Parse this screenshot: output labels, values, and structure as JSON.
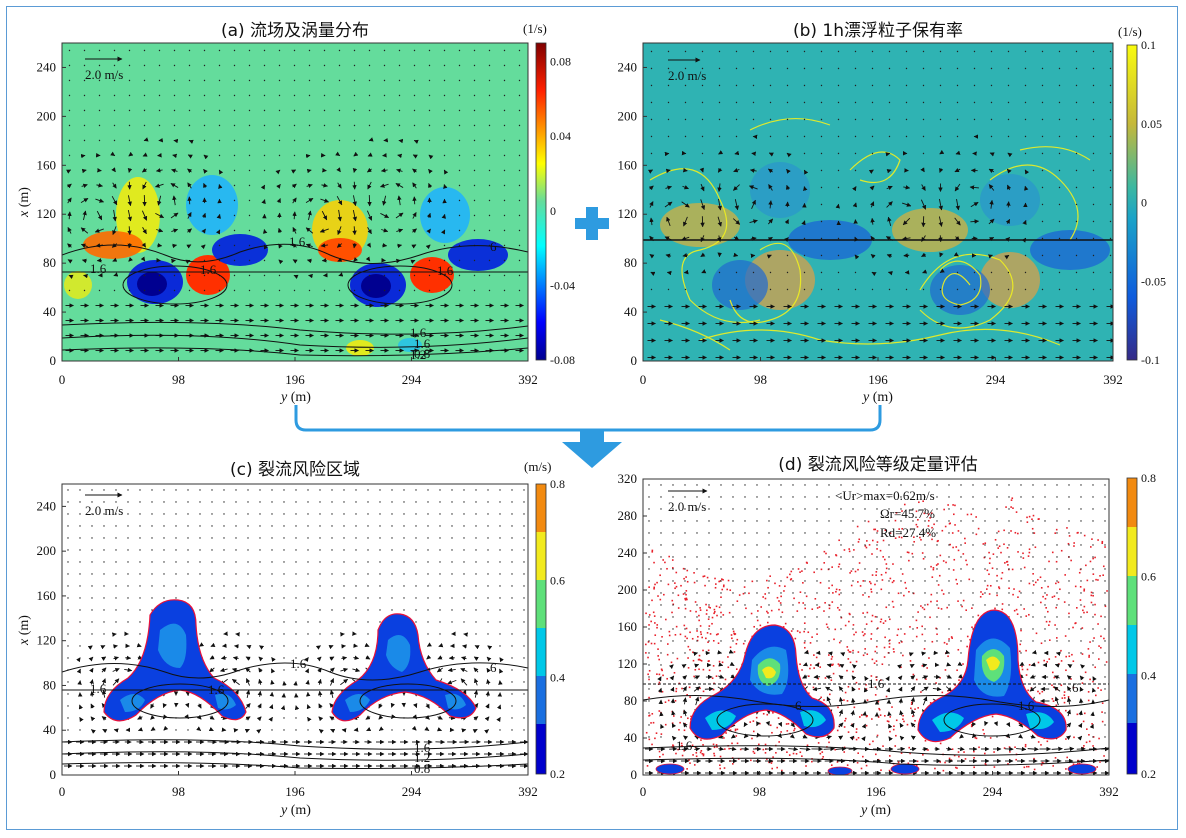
{
  "chart_data": [
    {
      "id": "a",
      "type": "heatmap",
      "title": "(a) 流场及涡量分布",
      "xlabel_italic": "y",
      "xlabel_unit": " (m)",
      "ylabel_italic": "x",
      "ylabel_unit": " (m)",
      "xlim": [
        0,
        392
      ],
      "ylim": [
        0,
        260
      ],
      "xticks": [
        0,
        98,
        196,
        294,
        392
      ],
      "yticks": [
        0,
        40,
        80,
        120,
        160,
        200,
        240
      ],
      "ytick_labels": [
        "0",
        "40",
        "80",
        "120",
        "160",
        "200",
        "240"
      ],
      "vector_scale_label": "2.0 m/s",
      "colorbar_unit": "(1/s)",
      "colorbar_range": [
        -0.08,
        0.09
      ],
      "colorbar_ticks": [
        0.08,
        0.04,
        0,
        -0.04,
        -0.08
      ],
      "colorbar_tick_labels": [
        "0.08",
        "0.04",
        "0",
        "-0.04",
        "-0.08"
      ],
      "contour_labels": [
        "1.6",
        "1.6",
        "1.6",
        "6",
        "1.6",
        "1.6",
        "1.6",
        "1.2",
        "0.8"
      ],
      "background": "#64dc9c"
    },
    {
      "id": "b",
      "type": "heatmap",
      "title": "(b) 1h漂浮粒子保有率",
      "xlim": [
        0,
        392
      ],
      "ylim": [
        0,
        260
      ],
      "xticks": [
        0,
        98,
        196,
        294,
        392
      ],
      "yticks": [
        0,
        40,
        80,
        120,
        160,
        200,
        240
      ],
      "ytick_labels": [
        "0",
        "40",
        "80",
        "120",
        "160",
        "200",
        "240"
      ],
      "xlabel_italic": "y",
      "xlabel_unit": " (m)",
      "vector_scale_label": "2.0 m/s",
      "colorbar_unit": "(1/s)",
      "colorbar_range": [
        -0.1,
        0.1
      ],
      "colorbar_ticks": [
        0.1,
        0.05,
        0,
        -0.05,
        -0.1
      ],
      "colorbar_tick_labels": [
        "0.1",
        "0.05",
        "0",
        "-0.05",
        "-0.1"
      ],
      "horizontal_line_x": 100,
      "background": "#2fb3b3"
    },
    {
      "id": "c",
      "type": "heatmap",
      "title": "(c) 裂流风险区域",
      "xlim": [
        0,
        392
      ],
      "ylim": [
        0,
        260
      ],
      "xticks": [
        0,
        98,
        196,
        294,
        392
      ],
      "yticks": [
        0,
        40,
        80,
        120,
        160,
        200,
        240
      ],
      "ytick_labels": [
        "0",
        "40",
        "80",
        "120",
        "160",
        "200",
        "240"
      ],
      "xlabel_italic": "y",
      "xlabel_unit": " (m)",
      "ylabel_italic": "x",
      "ylabel_unit": " (m)",
      "vector_scale_label": "2.0 m/s",
      "colorbar_unit": "(m/s)",
      "colorbar_range": [
        0.2,
        0.8
      ],
      "colorbar_ticks": [
        0.8,
        0.6,
        0.4,
        0.2
      ],
      "colorbar_tick_labels": [
        "0.8",
        "0.6",
        "0.4",
        "0.2"
      ],
      "contour_labels": [
        "1.6",
        "1.6",
        "1.6",
        "6",
        "1.6",
        "1.2",
        "0.8"
      ]
    },
    {
      "id": "d",
      "type": "heatmap",
      "title": "(d) 裂流风险等级定量评估",
      "xlim": [
        0,
        392
      ],
      "ylim": [
        0,
        320
      ],
      "xticks": [
        0,
        98,
        196,
        294,
        392
      ],
      "yticks": [
        0,
        40,
        80,
        120,
        160,
        200,
        240,
        280,
        320
      ],
      "ytick_labels": [
        "0",
        "40",
        "80",
        "120",
        "160",
        "200",
        "240",
        "280",
        "320"
      ],
      "xlabel_italic": "y",
      "xlabel_unit": " (m)",
      "vector_scale_label": "2.0 m/s",
      "colorbar_range": [
        0.2,
        0.8
      ],
      "colorbar_ticks": [
        0.8,
        0.6,
        0.4,
        0.2
      ],
      "colorbar_tick_labels": [
        "0.8",
        "0.6",
        "0.4",
        "0.2"
      ],
      "annotations": [
        "<Ur>max=0.62m/s",
        "Ωr=45.7%",
        "Rd=27.4%"
      ],
      "contour_labels": [
        "1.6",
        "1.6",
        "6",
        "6",
        "1.6"
      ]
    }
  ],
  "colors": {
    "frame_border": "#5b9bd5",
    "arrow_blue": "#2e9be0",
    "plus_blue": "#2e9be0",
    "risk_levels": [
      "#0000cc",
      "#1a6fe0",
      "#00c8e8",
      "#5ee07a",
      "#f2ea1e",
      "#f28a10"
    ]
  }
}
